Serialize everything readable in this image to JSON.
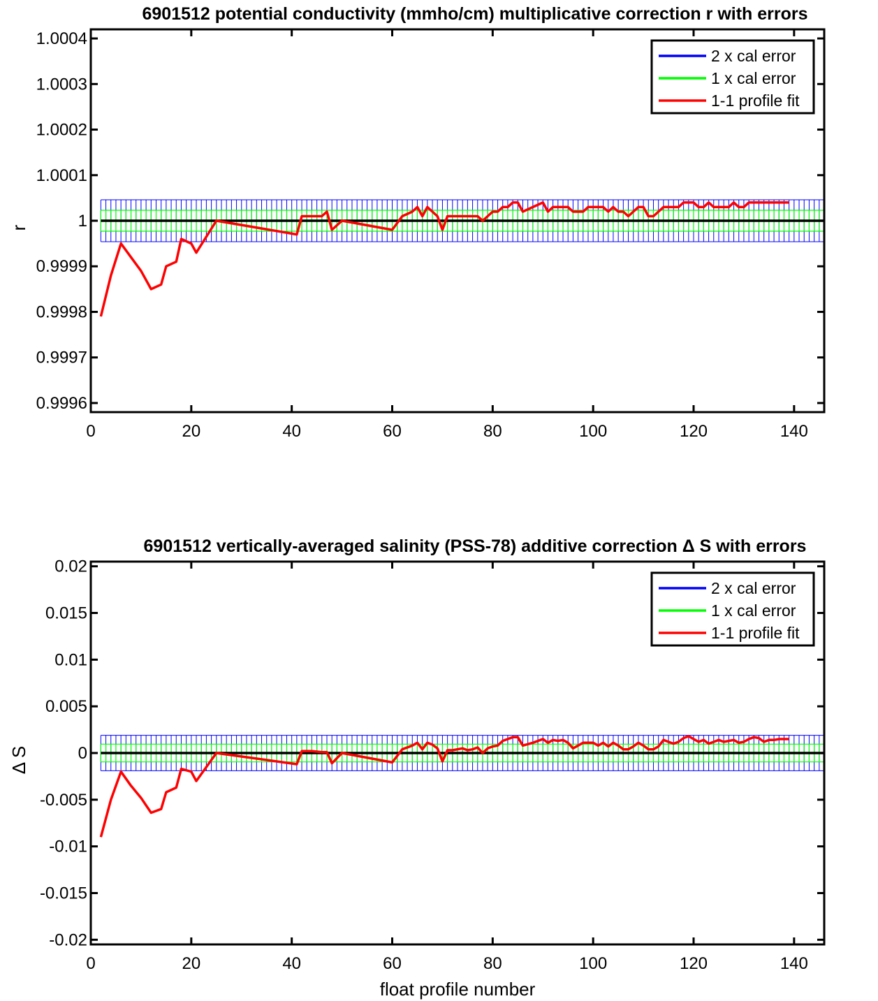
{
  "chart_data": [
    {
      "type": "line",
      "title": "6901512 potential conductivity (mmho/cm) multiplicative correction r with errors",
      "xlabel": "",
      "ylabel": "r",
      "xlim": [
        0,
        146
      ],
      "ylim": [
        0.99958,
        1.00042
      ],
      "xticks": [
        0,
        20,
        40,
        60,
        80,
        100,
        120,
        140
      ],
      "xtick_labels": [
        "0",
        "20",
        "40",
        "60",
        "80",
        "100",
        "120",
        "140"
      ],
      "yticks": [
        0.9996,
        0.9997,
        0.9998,
        0.9999,
        1.0,
        1.0001,
        1.0002,
        1.0003,
        1.0004
      ],
      "ytick_labels": [
        "0.9996",
        "0.9997",
        "0.9998",
        "0.9999",
        "1",
        "1.0001",
        "1.0002",
        "1.0003",
        "1.0004"
      ],
      "reference_value": 1.0,
      "band_x_start": 2,
      "band_x_end": 146,
      "band_x_step": 1,
      "two_x_cal_error": 4.6e-05,
      "one_x_cal_error": 2.3e-05,
      "legend_position": "top-right",
      "series": [
        {
          "name": "2 x cal error",
          "color": "#0000ff"
        },
        {
          "name": "1 x cal error",
          "color": "#00ff00"
        },
        {
          "name": "1-1 profile fit",
          "color": "#ff0000",
          "x": [
            2,
            4,
            6,
            8,
            10,
            12,
            14,
            15,
            17,
            18,
            20,
            21,
            25,
            41,
            42,
            44,
            46,
            47,
            48,
            50,
            60,
            62,
            64,
            65,
            66,
            67,
            68,
            69,
            70,
            71,
            72,
            74,
            75,
            76,
            77,
            78,
            79,
            80,
            81,
            82,
            83,
            84,
            85,
            86,
            88,
            90,
            91,
            92,
            93,
            94,
            95,
            96,
            97,
            98,
            99,
            100,
            101,
            102,
            103,
            104,
            105,
            106,
            107,
            108,
            109,
            110,
            111,
            112,
            113,
            114,
            115,
            116,
            117,
            118,
            119,
            120,
            121,
            122,
            123,
            124,
            125,
            126,
            127,
            128,
            129,
            130,
            131,
            132,
            133,
            134,
            135,
            136,
            137,
            138,
            139
          ],
          "y": [
            0.99979,
            0.99988,
            0.99995,
            0.99992,
            0.99989,
            0.99985,
            0.99986,
            0.9999,
            0.99991,
            0.99996,
            0.99995,
            0.99993,
            1.0,
            0.99997,
            1.00001,
            1.00001,
            1.00001,
            1.00002,
            0.99998,
            1.0,
            0.99998,
            1.00001,
            1.00002,
            1.00003,
            1.00001,
            1.00003,
            1.00002,
            1.00001,
            0.99998,
            1.00001,
            1.00001,
            1.00001,
            1.00001,
            1.00001,
            1.00001,
            1.0,
            1.00001,
            1.00002,
            1.00002,
            1.00003,
            1.00003,
            1.00004,
            1.00004,
            1.00002,
            1.00003,
            1.00004,
            1.00002,
            1.00003,
            1.00003,
            1.00003,
            1.00003,
            1.00002,
            1.00002,
            1.00002,
            1.00003,
            1.00003,
            1.00003,
            1.00003,
            1.00002,
            1.00003,
            1.00002,
            1.00002,
            1.00001,
            1.00002,
            1.00003,
            1.00003,
            1.00001,
            1.00001,
            1.00002,
            1.00003,
            1.00003,
            1.00003,
            1.00003,
            1.00004,
            1.00004,
            1.00004,
            1.00003,
            1.00003,
            1.00004,
            1.00003,
            1.00003,
            1.00003,
            1.00003,
            1.00004,
            1.00003,
            1.00003,
            1.00004,
            1.00004,
            1.00004,
            1.00004,
            1.00004,
            1.00004,
            1.00004,
            1.00004,
            1.00004
          ]
        }
      ]
    },
    {
      "type": "line",
      "title": "6901512 vertically-averaged salinity (PSS-78) additive correction Δ S with errors",
      "xlabel": "float profile number",
      "ylabel": "Δ S",
      "xlim": [
        0,
        146
      ],
      "ylim": [
        -0.0205,
        0.0205
      ],
      "xticks": [
        0,
        20,
        40,
        60,
        80,
        100,
        120,
        140
      ],
      "xtick_labels": [
        "0",
        "20",
        "40",
        "60",
        "80",
        "100",
        "120",
        "140"
      ],
      "yticks": [
        -0.02,
        -0.015,
        -0.01,
        -0.005,
        0,
        0.005,
        0.01,
        0.015,
        0.02
      ],
      "ytick_labels": [
        "-0.02",
        "-0.015",
        "-0.01",
        "-0.005",
        "0",
        "0.005",
        "0.01",
        "0.015",
        "0.02"
      ],
      "reference_value": 0,
      "band_x_start": 2,
      "band_x_end": 146,
      "band_x_step": 1,
      "two_x_cal_error": 0.0019,
      "one_x_cal_error": 0.00095,
      "legend_position": "top-right",
      "series": [
        {
          "name": "2 x cal error",
          "color": "#0000ff"
        },
        {
          "name": "1 x cal error",
          "color": "#00ff00"
        },
        {
          "name": "1-1 profile fit",
          "color": "#ff0000",
          "x": [
            2,
            4,
            6,
            8,
            10,
            12,
            14,
            15,
            17,
            18,
            20,
            21,
            25,
            41,
            42,
            44,
            46,
            47,
            48,
            50,
            60,
            62,
            64,
            65,
            66,
            67,
            68,
            69,
            70,
            71,
            72,
            74,
            75,
            76,
            77,
            78,
            79,
            80,
            81,
            82,
            83,
            84,
            85,
            86,
            88,
            90,
            91,
            92,
            93,
            94,
            95,
            96,
            97,
            98,
            99,
            100,
            101,
            102,
            103,
            104,
            105,
            106,
            107,
            108,
            109,
            110,
            111,
            112,
            113,
            114,
            115,
            116,
            117,
            118,
            119,
            120,
            121,
            122,
            123,
            124,
            125,
            126,
            127,
            128,
            129,
            130,
            131,
            132,
            133,
            134,
            135,
            136,
            137,
            138,
            139
          ],
          "y": [
            -0.009,
            -0.005,
            -0.002,
            -0.0035,
            -0.0048,
            -0.0064,
            -0.006,
            -0.0042,
            -0.0037,
            -0.0017,
            -0.002,
            -0.003,
            0.0,
            -0.0012,
            0.0002,
            0.0002,
            0.0001,
            0.0001,
            -0.0011,
            0.0,
            -0.001,
            0.0004,
            0.0008,
            0.0011,
            0.0004,
            0.0011,
            0.0009,
            0.0005,
            -0.0009,
            0.0003,
            0.0003,
            0.0005,
            0.0003,
            0.0004,
            0.0006,
            0.0,
            0.0005,
            0.0007,
            0.0008,
            0.0013,
            0.0015,
            0.0017,
            0.0017,
            0.0008,
            0.0011,
            0.0015,
            0.0011,
            0.0014,
            0.0013,
            0.0014,
            0.0011,
            0.0005,
            0.0008,
            0.0011,
            0.0011,
            0.0011,
            0.0008,
            0.0011,
            0.0007,
            0.0011,
            0.0008,
            0.0004,
            0.0004,
            0.0007,
            0.0011,
            0.0008,
            0.0004,
            0.0004,
            0.0007,
            0.0014,
            0.0012,
            0.001,
            0.0012,
            0.0016,
            0.0018,
            0.0015,
            0.0012,
            0.0014,
            0.001,
            0.0012,
            0.0014,
            0.0012,
            0.0013,
            0.0014,
            0.0011,
            0.0012,
            0.0015,
            0.0017,
            0.0016,
            0.0012,
            0.0014,
            0.0014,
            0.0015,
            0.0015,
            0.0015
          ]
        }
      ]
    }
  ]
}
